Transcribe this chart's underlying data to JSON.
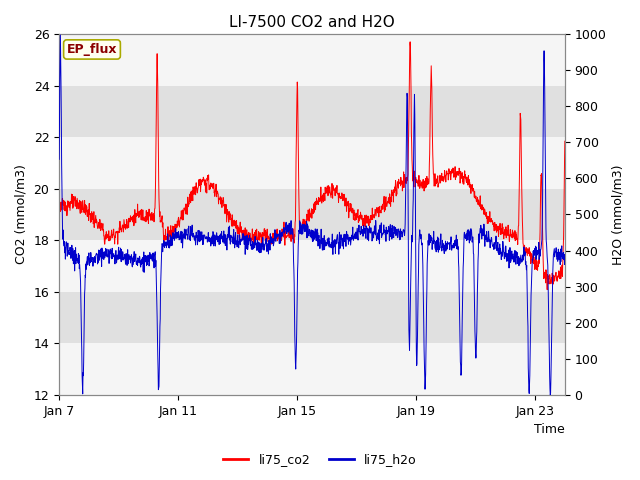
{
  "title": "LI-7500 CO2 and H2O",
  "xlabel": "Time",
  "ylabel_left": "CO2 (mmol/m3)",
  "ylabel_right": "H2O (mmol/m3)",
  "ylim_left": [
    12,
    26
  ],
  "ylim_right": [
    0,
    1000
  ],
  "yticks_left": [
    12,
    14,
    16,
    18,
    20,
    22,
    24,
    26
  ],
  "yticks_right": [
    0,
    100,
    200,
    300,
    400,
    500,
    600,
    700,
    800,
    900,
    1000
  ],
  "xtick_labels": [
    "Jan 7",
    "Jan 11",
    "Jan 15",
    "Jan 19",
    "Jan 23"
  ],
  "xtick_positions": [
    0,
    4,
    8,
    12,
    16
  ],
  "ep_flux_label": "EP_flux",
  "ep_flux_label_color": "#8B0000",
  "ep_flux_box_color": "#FFFFF0",
  "line_co2_color": "#FF0000",
  "line_h2o_color": "#0000CC",
  "legend_co2": "li75_co2",
  "legend_h2o": "li75_h2o",
  "band_color_dark": "#E0E0E0",
  "band_color_light": "#F5F5F5",
  "title_fontsize": 11,
  "axis_label_fontsize": 9,
  "tick_fontsize": 9,
  "legend_fontsize": 9
}
